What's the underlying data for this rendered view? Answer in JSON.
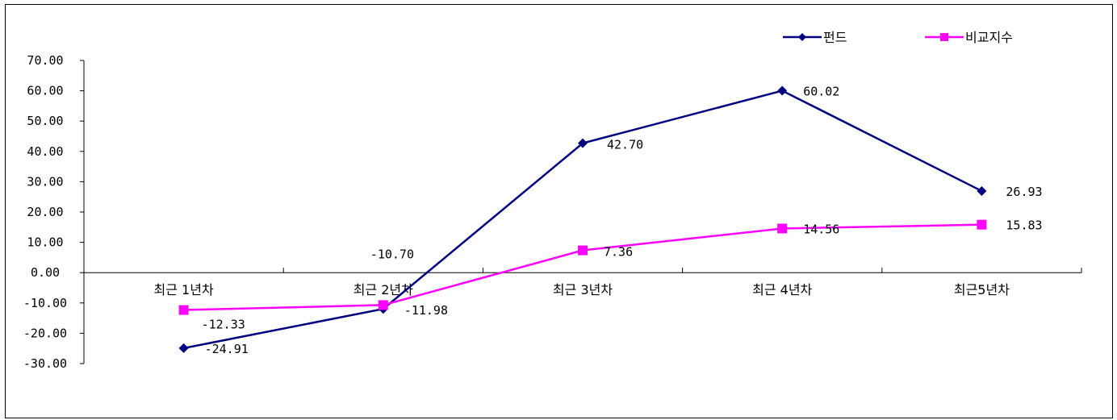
{
  "chart_data": {
    "type": "line",
    "title": "",
    "xlabel": "",
    "ylabel": "",
    "categories": [
      "최근 1년차",
      "최근 2년차",
      "최근 3년차",
      "최근 4년차",
      "최근5년차"
    ],
    "ylim": [
      -30,
      70
    ],
    "yticks": [
      "70.00",
      "60.00",
      "50.00",
      "40.00",
      "30.00",
      "20.00",
      "10.00",
      "0.00",
      "-10.00",
      "-20.00",
      "-30.00"
    ],
    "ytick_values": [
      70,
      60,
      50,
      40,
      30,
      20,
      10,
      0,
      -10,
      -20,
      -30
    ],
    "grid": false,
    "legend_position": "top-right",
    "series": [
      {
        "name": "펀드",
        "color": "#000080",
        "marker": "diamond",
        "values": [
          -24.91,
          -11.98,
          42.7,
          60.02,
          26.93
        ],
        "labels": [
          "-24.91",
          "-11.98",
          "42.70",
          "60.02",
          "26.93"
        ]
      },
      {
        "name": "비교지수",
        "color": "#ff00ff",
        "marker": "square",
        "values": [
          -12.33,
          -10.7,
          7.36,
          14.56,
          15.83
        ],
        "labels": [
          "-12.33",
          "-10.70",
          "7.36",
          "14.56",
          "15.83"
        ]
      }
    ]
  }
}
